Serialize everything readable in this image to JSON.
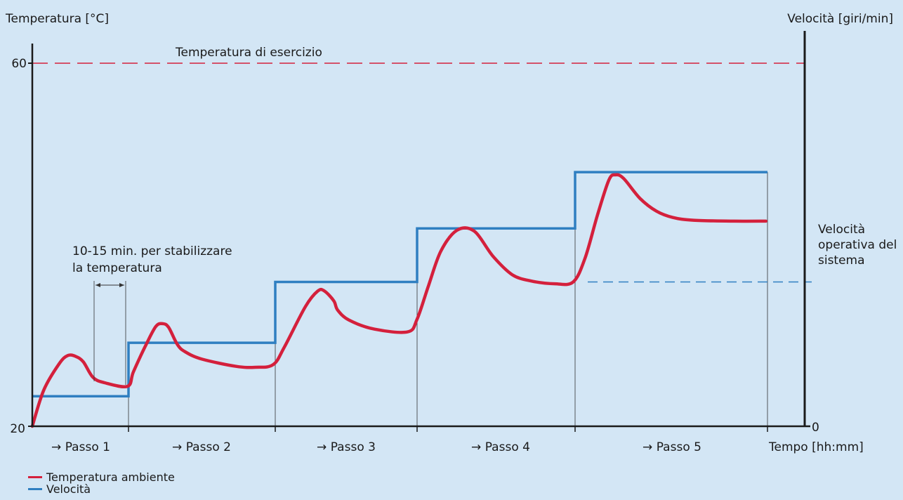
{
  "chart_data": {
    "type": "line",
    "y_left_label": "Temperatura [°C]",
    "y_right_label": "Velocità [giri/min]",
    "x_label": "Tempo [hh:mm]",
    "y_left_ticks": [
      "60",
      "20"
    ],
    "y_right_ticks": [
      "0"
    ],
    "y_left_range": [
      20,
      60
    ],
    "reference_lines": [
      {
        "label": "Temperatura di esercizio",
        "axis": "left",
        "value": 60,
        "style": "dashed",
        "color": "#d4203c"
      },
      {
        "label": "Velocità operativa del sistema",
        "axis": "right",
        "value": 0.66,
        "style": "dashed",
        "color": "#2f7fc1"
      }
    ],
    "annotation": {
      "text": [
        "10-15 min. per stabilizzare",
        "la temperatura"
      ]
    },
    "step_labels": [
      "→ Passo 1",
      "→ Passo 2",
      "→ Passo 3",
      "→ Passo 4",
      "→ Passo 5"
    ],
    "step_boundaries": [
      0,
      1,
      2.5,
      4,
      5.66,
      8
    ],
    "series": [
      {
        "name": "Temperatura ambiente",
        "color": "#d4203c",
        "axis": "left",
        "points": [
          [
            0.0,
            20.0
          ],
          [
            0.12,
            24.0
          ],
          [
            0.28,
            26.9
          ],
          [
            0.37,
            27.8
          ],
          [
            0.45,
            27.7
          ],
          [
            0.53,
            27.1
          ],
          [
            0.63,
            25.4
          ],
          [
            0.75,
            24.8
          ],
          [
            0.99,
            24.4
          ],
          [
            1.05,
            26.0
          ],
          [
            1.18,
            29.0
          ],
          [
            1.28,
            31.0
          ],
          [
            1.35,
            31.3
          ],
          [
            1.41,
            30.9
          ],
          [
            1.5,
            29.0
          ],
          [
            1.58,
            28.2
          ],
          [
            1.75,
            27.4
          ],
          [
            2.1,
            26.6
          ],
          [
            2.3,
            26.5
          ],
          [
            2.48,
            26.8
          ],
          [
            2.6,
            28.8
          ],
          [
            2.82,
            33.2
          ],
          [
            2.95,
            34.9
          ],
          [
            3.02,
            34.9
          ],
          [
            3.12,
            33.8
          ],
          [
            3.16,
            32.8
          ],
          [
            3.28,
            31.7
          ],
          [
            3.55,
            30.7
          ],
          [
            3.9,
            30.4
          ],
          [
            4.0,
            31.8
          ],
          [
            4.12,
            35.5
          ],
          [
            4.25,
            39.3
          ],
          [
            4.42,
            41.6
          ],
          [
            4.6,
            41.5
          ],
          [
            4.8,
            38.7
          ],
          [
            5.0,
            36.7
          ],
          [
            5.2,
            36.0
          ],
          [
            5.45,
            35.7
          ],
          [
            5.64,
            35.9
          ],
          [
            5.78,
            38.5
          ],
          [
            5.93,
            43.2
          ],
          [
            6.07,
            47.1
          ],
          [
            6.15,
            47.7
          ],
          [
            6.25,
            47.3
          ],
          [
            6.45,
            45.1
          ],
          [
            6.65,
            43.7
          ],
          [
            6.85,
            43.0
          ],
          [
            7.1,
            42.7
          ],
          [
            7.6,
            42.6
          ],
          [
            7.98,
            42.6
          ]
        ]
      },
      {
        "name": "Velocità",
        "color": "#2f7fc1",
        "axis": "left",
        "points": [
          [
            0.0,
            23.3
          ],
          [
            1.0,
            23.3
          ],
          [
            1.0,
            29.2
          ],
          [
            2.5,
            29.2
          ],
          [
            2.5,
            35.9
          ],
          [
            4.0,
            35.9
          ],
          [
            4.0,
            41.8
          ],
          [
            5.66,
            41.8
          ],
          [
            5.66,
            48.0
          ],
          [
            8.0,
            48.0
          ]
        ]
      }
    ]
  },
  "legend": {
    "items": [
      {
        "label": "Temperatura ambiente",
        "color": "#d4203c"
      },
      {
        "label": "Velocità",
        "color": "#2f7fc1"
      }
    ]
  }
}
